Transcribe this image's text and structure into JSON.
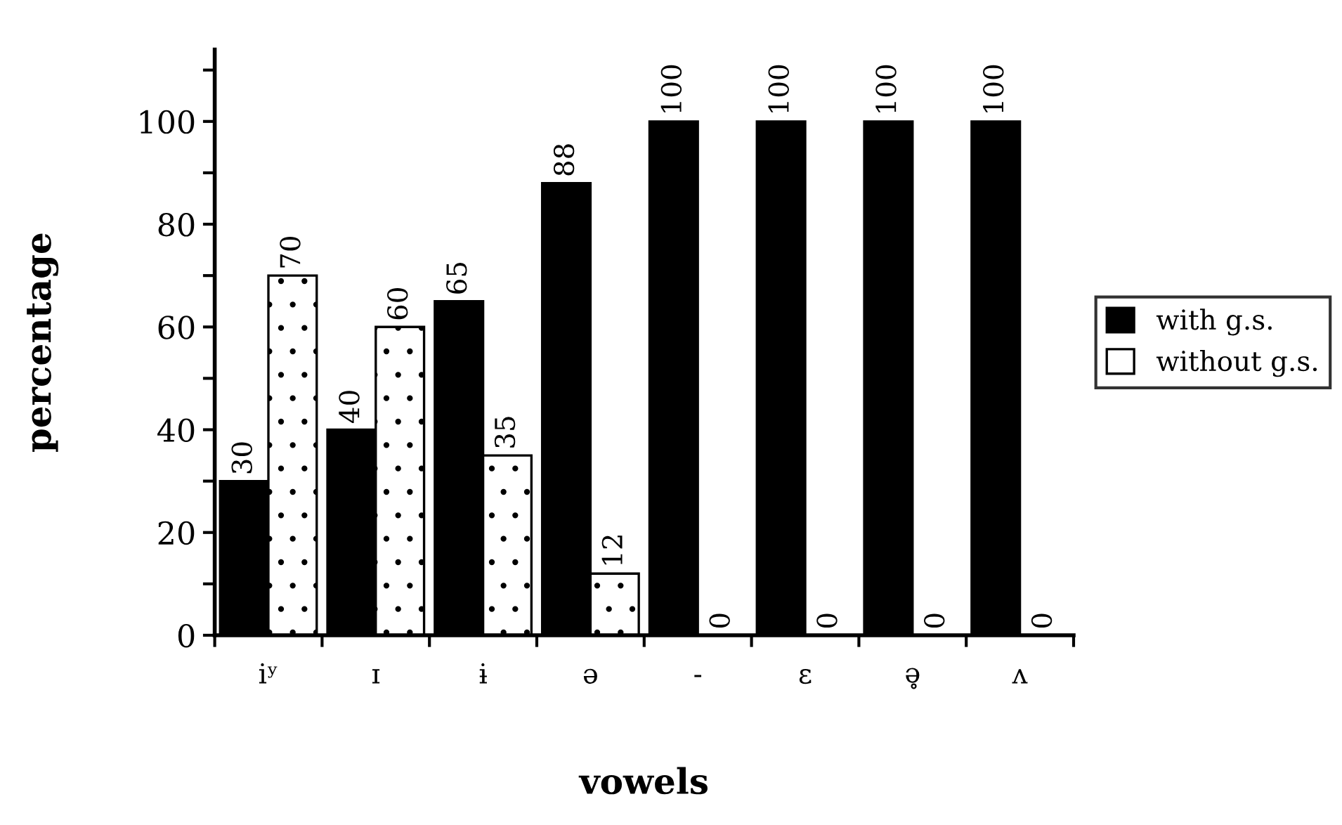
{
  "chart_data": {
    "type": "bar",
    "xlabel": "vowels",
    "ylabel": "percentage",
    "categories": [
      "iʸ",
      "ɪ",
      "ɨ",
      "ə",
      "-",
      "ɛ",
      "ə̥",
      "ʌ"
    ],
    "series": [
      {
        "name": "with g.s.",
        "color": "#000000",
        "values": [
          30,
          40,
          65,
          88,
          100,
          100,
          100,
          100
        ]
      },
      {
        "name": "without g.s.",
        "color": "#ffffff",
        "values": [
          70,
          60,
          35,
          12,
          0,
          0,
          0,
          0
        ]
      }
    ],
    "ylim": [
      0,
      114
    ],
    "yticks": [
      0,
      {
        "value": 10,
        "label": null
      },
      20,
      {
        "value": 30,
        "label": null
      },
      40,
      {
        "value": 50,
        "label": null
      },
      60,
      {
        "value": 70,
        "label": null
      },
      80,
      {
        "value": 90,
        "label": null
      },
      100,
      {
        "value": 110,
        "label": null
      }
    ],
    "data_labels": true,
    "grid": false,
    "legend": "right"
  }
}
